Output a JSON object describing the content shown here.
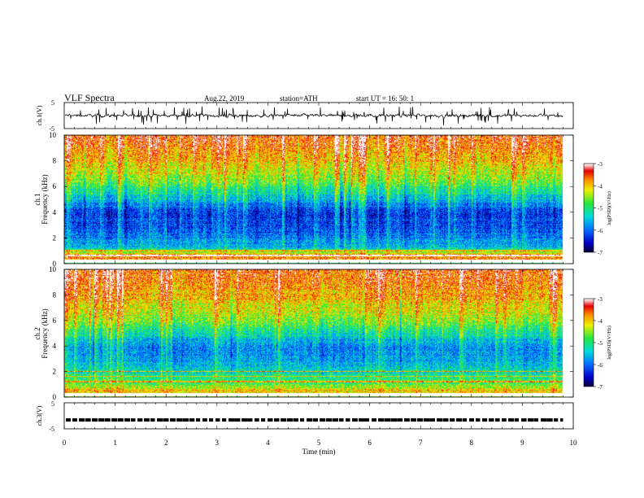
{
  "header": {
    "title": "VLF  Spectra",
    "date": "Aug.22, 2019",
    "station": "station=ATH",
    "start": "start  UT  =    16: 50: 1"
  },
  "chart_data": [
    {
      "type": "line",
      "id": "ch1-waveform",
      "ylabel": "ch.1(V)",
      "ylim": [
        -5,
        5
      ],
      "yticks": [
        5,
        -5
      ],
      "xlim": [
        0,
        10
      ],
      "description_values": "noisy waveform centered near 0 V, excursions roughly between -2 and 2 V"
    },
    {
      "type": "heatmap",
      "id": "ch1-spectrogram",
      "ylabel_top": "ch.1",
      "ylabel": "Frequency  (kHz)",
      "ylim": [
        0,
        10
      ],
      "yticks": [
        0,
        2,
        4,
        6,
        8,
        10
      ],
      "xlim": [
        0,
        10
      ],
      "x_data_end": 9.8,
      "colorbar": {
        "label": "log(PSD)(V²/Hz)",
        "range": [
          -7,
          -3
        ],
        "ticks": [
          "-3",
          "-4",
          "-5",
          "-6",
          "-7"
        ]
      },
      "log_psd_profile": [
        {
          "f": 0.0,
          "v": -5.0
        },
        {
          "f": 0.4,
          "v": -3.6
        },
        {
          "f": 0.8,
          "v": -4.2
        },
        {
          "f": 1.2,
          "v": -5.6
        },
        {
          "f": 2.0,
          "v": -5.9
        },
        {
          "f": 3.0,
          "v": -6.2
        },
        {
          "f": 4.0,
          "v": -6.3
        },
        {
          "f": 5.0,
          "v": -5.6
        },
        {
          "f": 6.0,
          "v": -4.9
        },
        {
          "f": 7.0,
          "v": -4.4
        },
        {
          "f": 8.0,
          "v": -4.0
        },
        {
          "f": 9.0,
          "v": -3.7
        },
        {
          "f": 10.0,
          "v": -3.5
        }
      ]
    },
    {
      "type": "heatmap",
      "id": "ch2-spectrogram",
      "ylabel_top": "ch.2",
      "ylabel": "Frequency  (kHz)",
      "ylim": [
        0,
        10
      ],
      "yticks": [
        0,
        2,
        4,
        6,
        8,
        10
      ],
      "xlim": [
        0,
        10
      ],
      "x_data_end": 9.8,
      "colorbar": {
        "label": "log(PSD)(V²/Hz)",
        "range": [
          -7,
          -3
        ],
        "ticks": [
          "-3",
          "-4",
          "-5",
          "-6",
          "-7"
        ]
      },
      "log_psd_profile": [
        {
          "f": 0.0,
          "v": -4.6
        },
        {
          "f": 0.4,
          "v": -3.9
        },
        {
          "f": 1.0,
          "v": -4.8
        },
        {
          "f": 1.8,
          "v": -5.2
        },
        {
          "f": 2.2,
          "v": -5.4
        },
        {
          "f": 3.0,
          "v": -5.7
        },
        {
          "f": 4.0,
          "v": -5.9
        },
        {
          "f": 5.0,
          "v": -5.2
        },
        {
          "f": 6.0,
          "v": -4.6
        },
        {
          "f": 7.0,
          "v": -4.2
        },
        {
          "f": 8.0,
          "v": -3.9
        },
        {
          "f": 9.0,
          "v": -3.7
        },
        {
          "f": 10.0,
          "v": -3.5
        }
      ]
    },
    {
      "type": "line",
      "id": "ch3-waveform",
      "ylabel": "ch.3(V)",
      "ylim": [
        -5,
        5
      ],
      "yticks": [
        5,
        -5
      ],
      "xlim": [
        0,
        10
      ],
      "xlabel": "Time  (min)",
      "xticks": [
        "0",
        "1",
        "2",
        "3",
        "4",
        "5",
        "6",
        "7",
        "8",
        "9",
        "10"
      ],
      "level": -1.6,
      "description_values": "near-constant pulse train at about -1.6 V"
    }
  ]
}
